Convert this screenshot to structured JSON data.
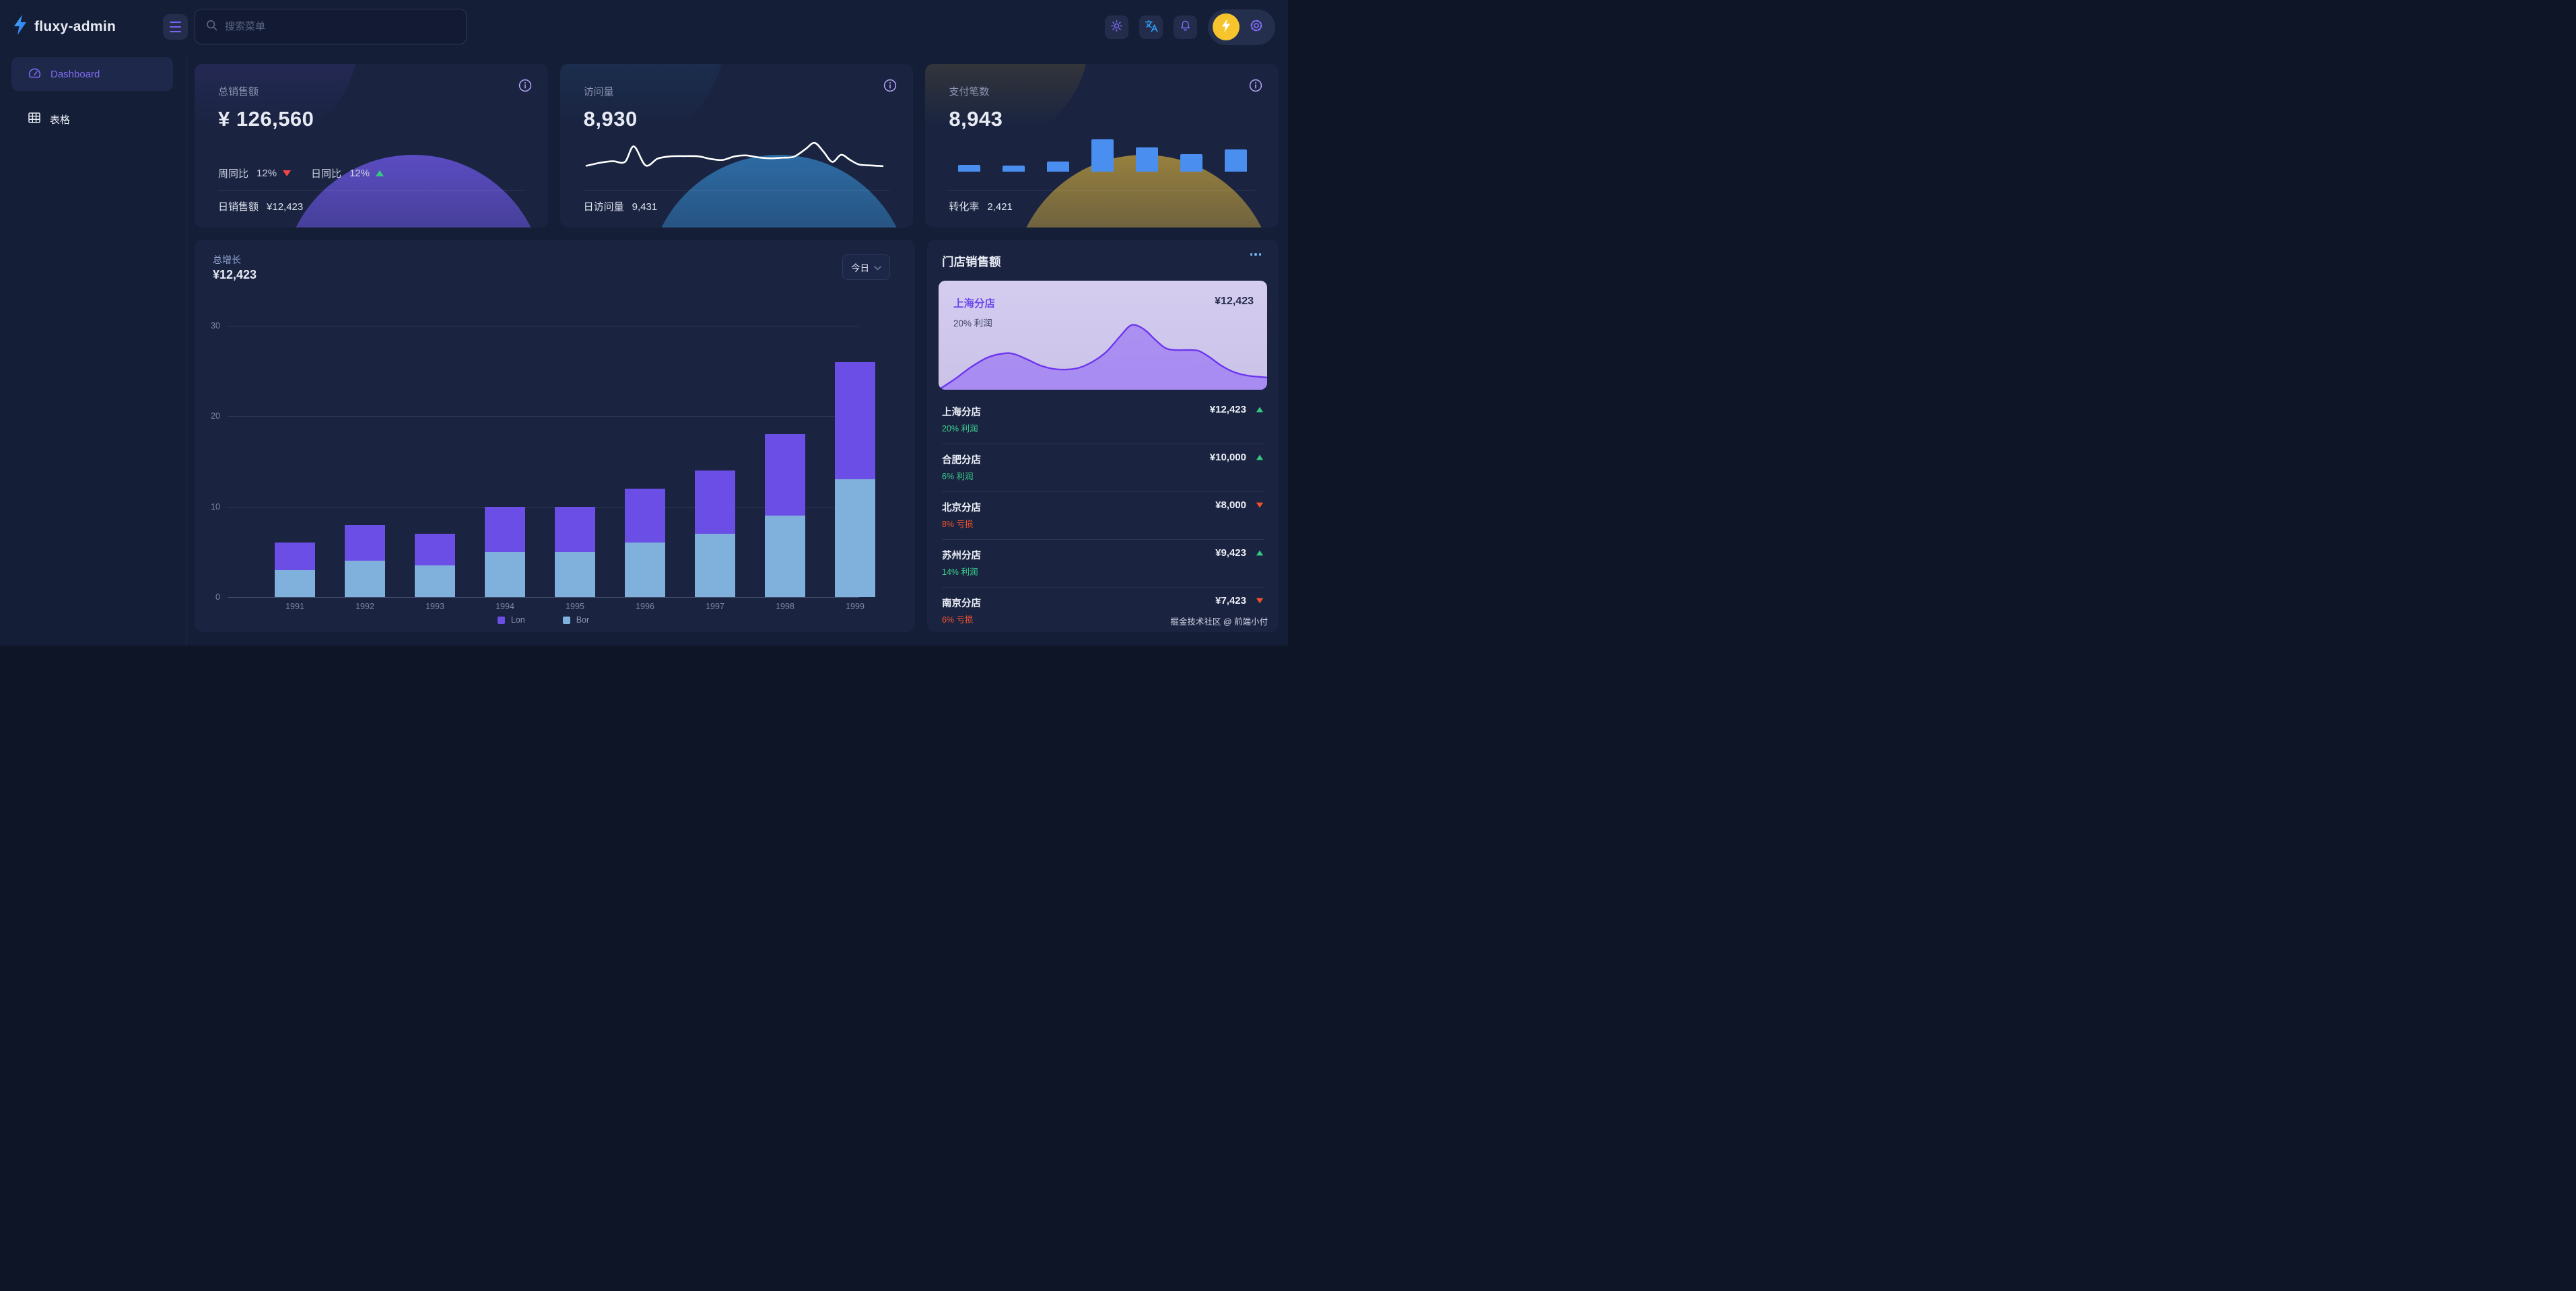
{
  "brand": {
    "name": "fluxy-admin"
  },
  "header": {
    "search_placeholder": "搜索菜单"
  },
  "sidebar": {
    "items": [
      {
        "label": "Dashboard",
        "icon": "gauge-icon",
        "active": true
      },
      {
        "label": "表格",
        "icon": "table-icon",
        "active": false
      }
    ]
  },
  "colors": {
    "accent_purple": "#6c54e8",
    "bar_purple": "#6b4ee6",
    "bar_blue": "#7fb1dc",
    "mini_bar_blue": "#4a8ef0",
    "green": "#35c97f",
    "red": "#f34747",
    "orange_red": "#f4512e",
    "yellow": "#f6c52e",
    "card_bg": "#1a2441",
    "page_bg": "#141e37"
  },
  "stat_cards": [
    {
      "title": "总销售额",
      "value": "¥ 126,560",
      "metrics": [
        {
          "label": "周同比",
          "value": "12%",
          "trend": "down"
        },
        {
          "label": "日同比",
          "value": "12%",
          "trend": "up"
        }
      ],
      "footer_label": "日销售额",
      "footer_value": "¥12,423",
      "deco": "purple"
    },
    {
      "title": "访问量",
      "value": "8,930",
      "footer_label": "日访问量",
      "footer_value": "9,431",
      "deco": "blue",
      "sparkline_points": [
        [
          0,
          86
        ],
        [
          5,
          76
        ],
        [
          9,
          72
        ],
        [
          13,
          74
        ],
        [
          16,
          26
        ],
        [
          20,
          85
        ],
        [
          24,
          64
        ],
        [
          28,
          57
        ],
        [
          33,
          56
        ],
        [
          38,
          57
        ],
        [
          42,
          65
        ],
        [
          46,
          68
        ],
        [
          50,
          57
        ],
        [
          54,
          54
        ],
        [
          58,
          60
        ],
        [
          62,
          63
        ],
        [
          66,
          61
        ],
        [
          70,
          58
        ],
        [
          74,
          34
        ],
        [
          77,
          15
        ],
        [
          80,
          42
        ],
        [
          83,
          74
        ],
        [
          86,
          52
        ],
        [
          89,
          68
        ],
        [
          92,
          82
        ],
        [
          96,
          85
        ],
        [
          100,
          87
        ]
      ]
    },
    {
      "title": "支付笔数",
      "value": "8,943",
      "footer_label": "转化率",
      "footer_value": "2,421",
      "deco": "gold",
      "bars_relative": [
        0.21,
        0.19,
        0.31,
        1.0,
        0.76,
        0.55,
        0.68
      ]
    }
  ],
  "growth_chart": {
    "title": "总增长",
    "value": "¥12,423",
    "range_label": "今日"
  },
  "chart_data": {
    "type": "bar",
    "stacked": true,
    "title": "总增长",
    "categories": [
      "1991",
      "1992",
      "1993",
      "1994",
      "1995",
      "1996",
      "1997",
      "1998",
      "1999"
    ],
    "series": [
      {
        "name": "Lon",
        "color": "#6b4ee6",
        "values": [
          3,
          4,
          3.5,
          5,
          5,
          6,
          7,
          9,
          13
        ]
      },
      {
        "name": "Bor",
        "color": "#7fb1dc",
        "values": [
          3,
          4,
          3.5,
          5,
          5,
          6,
          7,
          9,
          13
        ]
      }
    ],
    "stack_order_bottom_to_top": [
      "Bor",
      "Lon"
    ],
    "totals": [
      6,
      8,
      7,
      10,
      10,
      12,
      14,
      18,
      26
    ],
    "xlabel": "",
    "ylabel": "",
    "ylim": [
      0,
      30
    ],
    "yticks": [
      0,
      10,
      20,
      30
    ],
    "grid": true,
    "legend_position": "bottom"
  },
  "store_panel": {
    "title": "门店销售额",
    "featured": {
      "name": "上海分店",
      "value": "¥12,423",
      "profit": "20% 利润",
      "area_points": [
        [
          0,
          100
        ],
        [
          5,
          84
        ],
        [
          10,
          66
        ],
        [
          15,
          52
        ],
        [
          20,
          46
        ],
        [
          23,
          47
        ],
        [
          27,
          55
        ],
        [
          31,
          64
        ],
        [
          35,
          69
        ],
        [
          39,
          70
        ],
        [
          43,
          67
        ],
        [
          47,
          58
        ],
        [
          51,
          44
        ],
        [
          55,
          22
        ],
        [
          58,
          6
        ],
        [
          60,
          4
        ],
        [
          63,
          12
        ],
        [
          66,
          26
        ],
        [
          69,
          38
        ],
        [
          72,
          41
        ],
        [
          76,
          41
        ],
        [
          79,
          42
        ],
        [
          82,
          50
        ],
        [
          86,
          64
        ],
        [
          90,
          74
        ],
        [
          94,
          79
        ],
        [
          98,
          81
        ],
        [
          100,
          82
        ]
      ]
    },
    "stores": [
      {
        "name": "上海分店",
        "value": "¥12,423",
        "sub": "20% 利润",
        "sub_type": "profit",
        "trend": "up"
      },
      {
        "name": "合肥分店",
        "value": "¥10,000",
        "sub": "6% 利润",
        "sub_type": "profit",
        "trend": "up"
      },
      {
        "name": "北京分店",
        "value": "¥8,000",
        "sub": "8% 亏损",
        "sub_type": "loss",
        "trend": "down"
      },
      {
        "name": "苏州分店",
        "value": "¥9,423",
        "sub": "14% 利润",
        "sub_type": "profit",
        "trend": "up"
      },
      {
        "name": "南京分店",
        "value": "¥7,423",
        "sub": "6% 亏损",
        "sub_type": "loss",
        "trend": "down"
      }
    ],
    "watermark": "掘金技术社区 @ 前端小付"
  }
}
